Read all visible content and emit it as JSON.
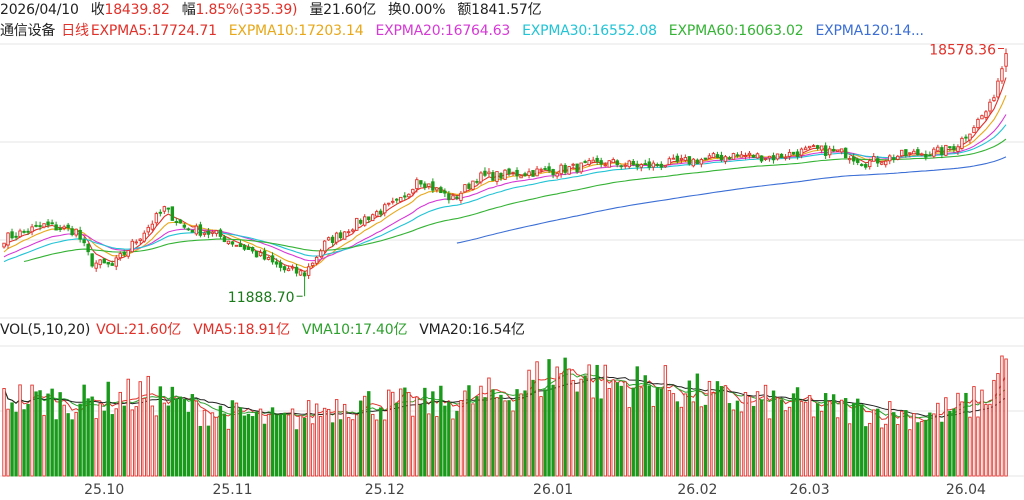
{
  "header": {
    "date": "2026/04/10",
    "close_label": "收",
    "close_value": "18439.82",
    "change_label": "幅",
    "change_value": "1.85%(335.39)",
    "volume_label": "量",
    "volume_value": "21.60亿",
    "turnover_label": "换",
    "turnover_value": "0.00%",
    "amount_label": "额",
    "amount_value": "1841.57亿"
  },
  "indicator_line": {
    "name": "通信设备",
    "period": "日线",
    "items": [
      {
        "text": "EXPMA5:17724.71",
        "color": "#e0312a"
      },
      {
        "text": "EXPMA10:17203.14",
        "color": "#e8a81a"
      },
      {
        "text": "EXPMA20:16764.63",
        "color": "#d63ad6"
      },
      {
        "text": "EXPMA30:16552.08",
        "color": "#22c4d6"
      },
      {
        "text": "EXPMA60:16063.02",
        "color": "#35b335"
      },
      {
        "text": "EXPMA120:14...",
        "color": "#3c6fd6"
      }
    ]
  },
  "volume_header": {
    "label": "VOL(5,10,20)",
    "items": [
      {
        "text": "VOL:21.60亿",
        "color": "#e0312a"
      },
      {
        "text": "VMA5:18.91亿",
        "color": "#e0312a"
      },
      {
        "text": "VMA10:17.40亿",
        "color": "#2ea02e"
      },
      {
        "text": "VMA20:16.54亿",
        "color": "#222222"
      }
    ]
  },
  "annotations": {
    "high_label": "18578.36",
    "low_label": "11888.70"
  },
  "x_axis_labels": [
    "25.10",
    "25.11",
    "25.12",
    "26.01",
    "26.02",
    "26.03",
    "26.04"
  ],
  "colors": {
    "up": "#e0312a",
    "down": "#1a9a1a",
    "grid": "#e6e6e6",
    "axis_text": "#444444",
    "low_annotation": "#1a7a1a"
  },
  "chart_data": {
    "type": "candlestick",
    "title": "通信设备 日线",
    "price_range": [
      11300,
      18700
    ],
    "period_high": 18578.36,
    "period_low": 11888.7,
    "last_close": 18439.82,
    "series": [
      {
        "name": "EXPMA5",
        "color": "#e0312a"
      },
      {
        "name": "EXPMA10",
        "color": "#e8a81a"
      },
      {
        "name": "EXPMA20",
        "color": "#d63ad6"
      },
      {
        "name": "EXPMA30",
        "color": "#22c4d6"
      },
      {
        "name": "EXPMA60",
        "color": "#35b335"
      },
      {
        "name": "EXPMA120",
        "color": "#3c6fd6"
      }
    ],
    "volume_series": [
      {
        "name": "VOL",
        "last": 21.6,
        "unit": "亿"
      },
      {
        "name": "VMA5",
        "last": 18.91,
        "unit": "亿"
      },
      {
        "name": "VMA10",
        "last": 17.4,
        "unit": "亿"
      },
      {
        "name": "VMA20",
        "last": 16.54,
        "unit": "亿"
      }
    ],
    "x_ticks": [
      "25.10",
      "25.11",
      "25.12",
      "26.01",
      "26.02",
      "26.03",
      "26.04"
    ],
    "close_anchors": [
      [
        0,
        13450
      ],
      [
        10,
        13800
      ],
      [
        18,
        13650
      ],
      [
        22,
        12800
      ],
      [
        27,
        12700
      ],
      [
        33,
        13400
      ],
      [
        40,
        14250
      ],
      [
        45,
        13750
      ],
      [
        53,
        13550
      ],
      [
        60,
        13200
      ],
      [
        70,
        12600
      ],
      [
        75,
        12500
      ],
      [
        80,
        13300
      ],
      [
        90,
        14000
      ],
      [
        100,
        14500
      ],
      [
        103,
        15100
      ],
      [
        108,
        14750
      ],
      [
        112,
        14500
      ],
      [
        118,
        15100
      ],
      [
        128,
        15200
      ],
      [
        142,
        15350
      ],
      [
        150,
        15500
      ],
      [
        160,
        15400
      ],
      [
        172,
        15550
      ],
      [
        182,
        15700
      ],
      [
        192,
        15650
      ],
      [
        202,
        15850
      ],
      [
        210,
        15750
      ],
      [
        215,
        15500
      ],
      [
        224,
        15700
      ],
      [
        234,
        15800
      ],
      [
        238,
        16000
      ],
      [
        246,
        17000
      ],
      [
        250,
        18439.82
      ]
    ],
    "volume_anchors": [
      [
        0,
        14.5
      ],
      [
        20,
        13.5
      ],
      [
        35,
        15
      ],
      [
        50,
        12
      ],
      [
        70,
        10
      ],
      [
        85,
        13.5
      ],
      [
        105,
        13
      ],
      [
        125,
        15
      ],
      [
        140,
        20
      ],
      [
        150,
        17
      ],
      [
        165,
        16.5
      ],
      [
        180,
        14
      ],
      [
        200,
        13
      ],
      [
        215,
        12
      ],
      [
        230,
        11
      ],
      [
        245,
        14
      ],
      [
        250,
        21.6
      ]
    ]
  }
}
